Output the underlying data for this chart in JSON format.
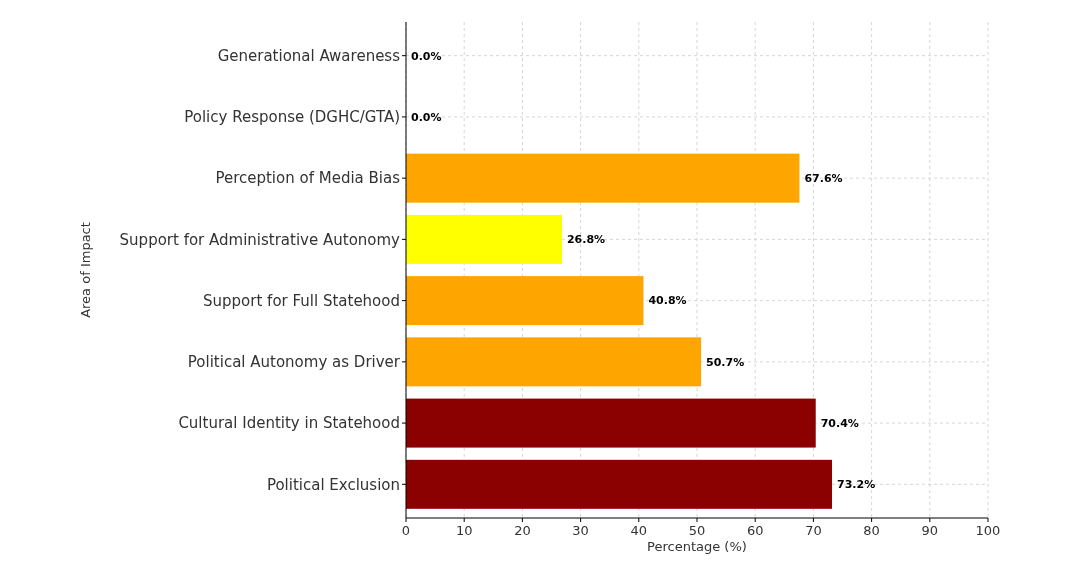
{
  "chart_data": {
    "type": "bar",
    "orientation": "horizontal",
    "xlabel": "Percentage (%)",
    "ylabel": "Area of Impact",
    "categories": [
      "Generational Awareness",
      "Policy Response (DGHC/GTA)",
      "Perception of Media Bias",
      "Support for Administrative Autonomy",
      "Support for Full Statehood",
      "Political Autonomy as Driver",
      "Cultural Identity in Statehood",
      "Political Exclusion"
    ],
    "values": [
      0,
      0,
      67.6,
      26.8,
      40.8,
      50.7,
      70.4,
      73.2
    ],
    "colors": [
      "#ffa500",
      "#ffa500",
      "#ffa500",
      "#ffff00",
      "#ffa500",
      "#ffa500",
      "#8b0000",
      "#8b0000"
    ],
    "value_labels": [
      "0.0%",
      "0.0%",
      "67.6%",
      "26.8%",
      "40.8%",
      "50.7%",
      "70.4%",
      "73.2%"
    ],
    "xlim": [
      0,
      100
    ],
    "xticks": [
      0,
      10,
      20,
      30,
      40,
      50,
      60,
      70,
      80,
      90,
      100
    ],
    "grid": true
  }
}
